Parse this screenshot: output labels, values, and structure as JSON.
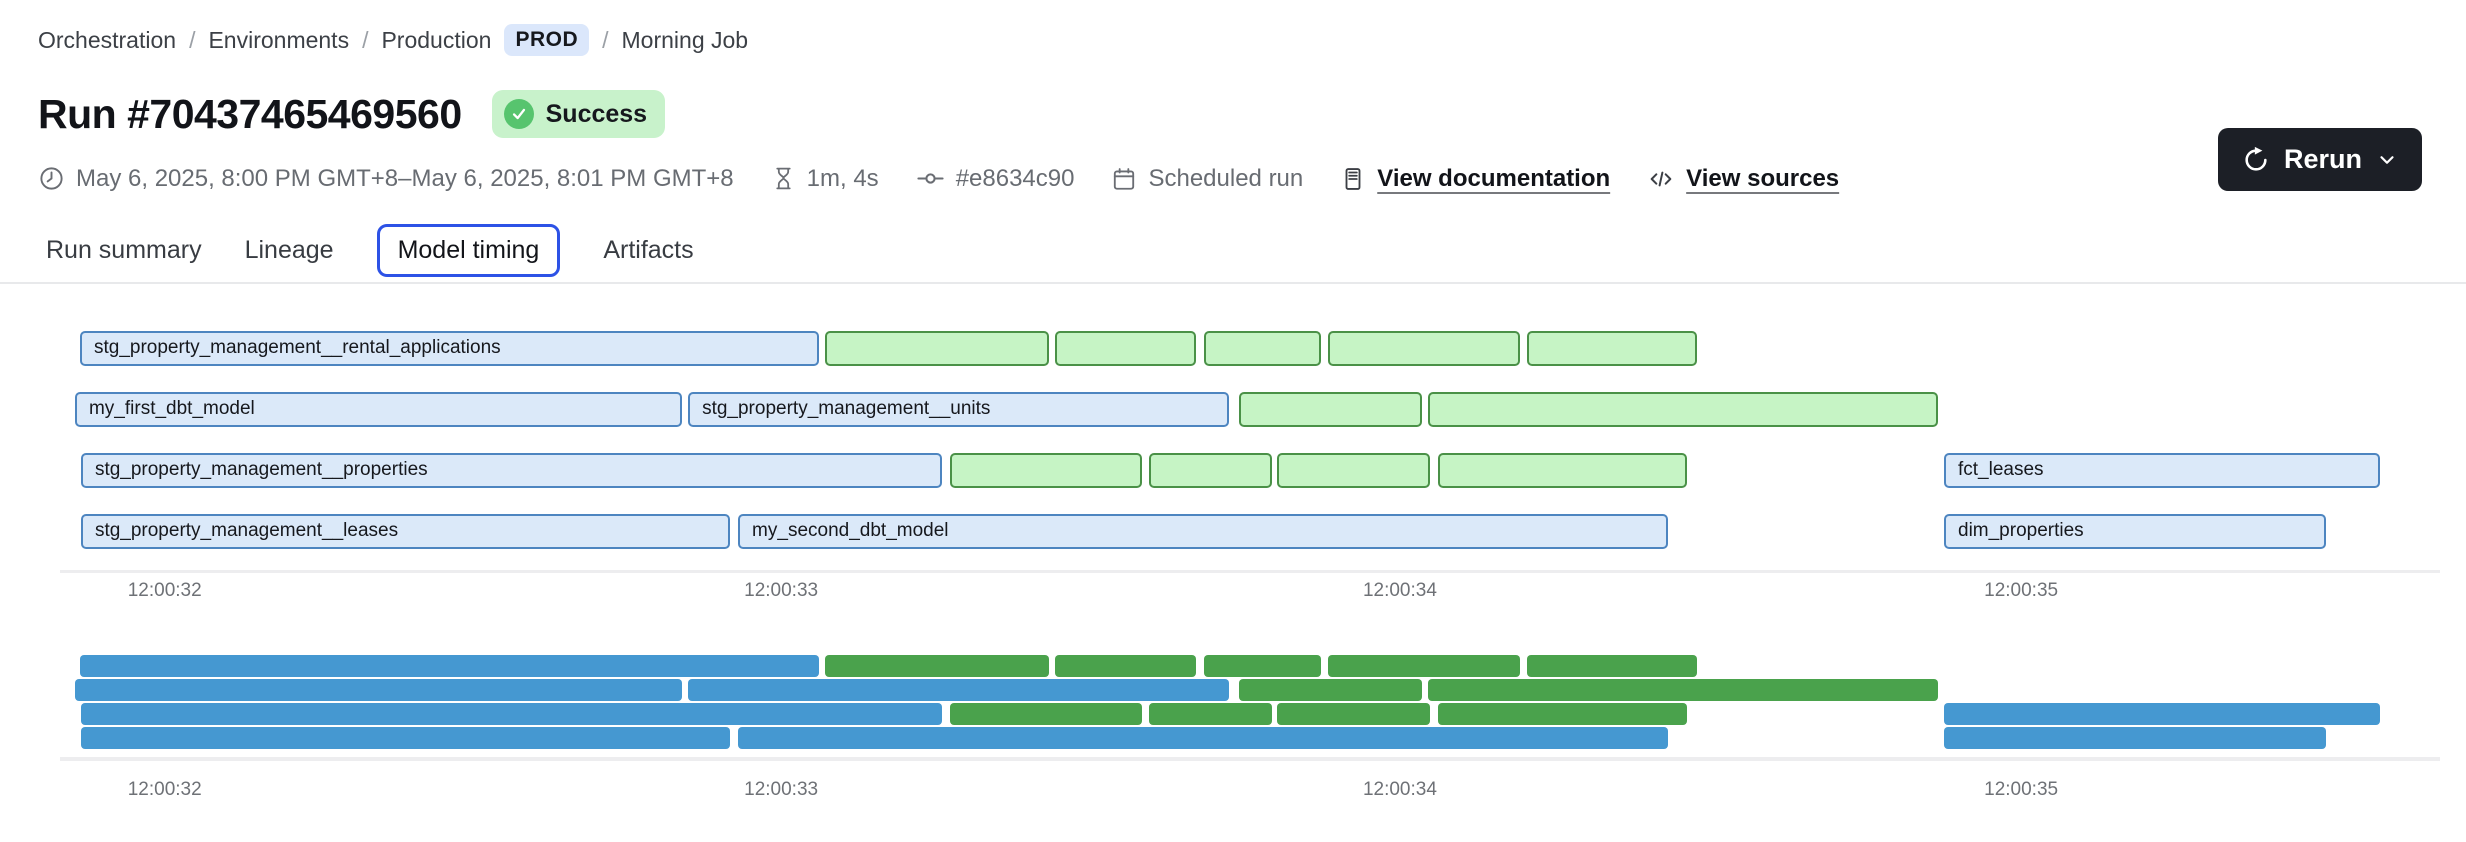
{
  "breadcrumb": {
    "separator": "/",
    "items": [
      "Orchestration",
      "Environments",
      "Production"
    ],
    "env_badge": "PROD",
    "job": "Morning Job"
  },
  "header": {
    "title": "Run #70437465469560",
    "status": "Success",
    "rerun_label": "Rerun"
  },
  "meta": {
    "items": [
      {
        "icon": "clock-icon",
        "text": "May 6, 2025, 8:00 PM GMT+8–May 6, 2025, 8:01 PM GMT+8"
      },
      {
        "icon": "hourglass-icon",
        "text": "1m, 4s"
      },
      {
        "icon": "commit-icon",
        "text": "#e8634c90"
      },
      {
        "icon": "calendar-icon",
        "text": "Scheduled run"
      },
      {
        "icon": "document-icon",
        "text": "View documentation",
        "link": true
      },
      {
        "icon": "code-icon",
        "text": "View sources",
        "link": true
      }
    ]
  },
  "tabs": [
    {
      "label": "Run summary",
      "active": false
    },
    {
      "label": "Lineage",
      "active": false
    },
    {
      "label": "Model timing",
      "active": true
    },
    {
      "label": "Artifacts",
      "active": false
    }
  ],
  "colors": {
    "accent_blue": "#2d52e6",
    "prod_badge_bg": "#dbe7fb",
    "badge_green_bg": "#c8f2cb",
    "badge_green_dot": "#57c46e",
    "rerun_bg": "#1c1f26",
    "bar_blue_fill": "#dbe9f9",
    "bar_blue_border": "#4d85c0",
    "bar_green_fill": "#c6f4c5",
    "bar_green_border": "#4a9147",
    "mini_blue": "#4598d1",
    "mini_green": "#4aa24c"
  },
  "chart_data": {
    "type": "gantt",
    "title": "Model timing",
    "x_axis": {
      "ticks": [
        "12:00:32",
        "12:00:33",
        "12:00:34",
        "12:00:35"
      ],
      "tick_positions_pct": [
        4.4,
        30.3,
        56.3,
        82.4
      ]
    },
    "legend": "none",
    "grid": "off",
    "rows": [
      [
        {
          "label": "stg_property_management__rental_applications",
          "kind": "blue",
          "left_pct": 0.84,
          "width_pct": 31.05,
          "est_start": "12:00:31.9",
          "est_end": "12:00:33.1"
        },
        {
          "label": "",
          "kind": "green",
          "left_pct": 32.14,
          "width_pct": 9.41,
          "est_start": "12:00:33.1",
          "est_end": "12:00:33.4"
        },
        {
          "label": "",
          "kind": "green",
          "left_pct": 41.81,
          "width_pct": 5.92,
          "est_start": "12:00:33.4",
          "est_end": "12:00:33.7"
        },
        {
          "label": "",
          "kind": "green",
          "left_pct": 48.07,
          "width_pct": 4.92,
          "est_start": "12:00:33.7",
          "est_end": "12:00:33.9"
        },
        {
          "label": "",
          "kind": "green",
          "left_pct": 53.28,
          "width_pct": 8.07,
          "est_start": "12:00:33.9",
          "est_end": "12:00:34.2"
        },
        {
          "label": "",
          "kind": "green",
          "left_pct": 61.64,
          "width_pct": 7.14,
          "est_start": "12:00:34.2",
          "est_end": "12:00:34.5"
        }
      ],
      [
        {
          "label": "my_first_dbt_model",
          "kind": "blue",
          "left_pct": 0.63,
          "width_pct": 25.5,
          "est_start": "12:00:31.9",
          "est_end": "12:00:32.8"
        },
        {
          "label": "stg_property_management__units",
          "kind": "blue",
          "left_pct": 26.39,
          "width_pct": 22.73,
          "est_start": "12:00:32.9",
          "est_end": "12:00:33.7"
        },
        {
          "label": "",
          "kind": "green",
          "left_pct": 49.54,
          "width_pct": 7.69,
          "est_start": "12:00:33.7",
          "est_end": "12:00:34.0"
        },
        {
          "label": "",
          "kind": "green",
          "left_pct": 57.48,
          "width_pct": 21.43,
          "est_start": "12:00:34.1",
          "est_end": "12:00:34.9"
        }
      ],
      [
        {
          "label": "stg_property_management__properties",
          "kind": "blue",
          "left_pct": 0.88,
          "width_pct": 36.18,
          "est_start": "12:00:31.9",
          "est_end": "12:00:33.3"
        },
        {
          "label": "",
          "kind": "green",
          "left_pct": 37.39,
          "width_pct": 8.07,
          "est_start": "12:00:33.3",
          "est_end": "12:00:33.6"
        },
        {
          "label": "",
          "kind": "green",
          "left_pct": 45.76,
          "width_pct": 5.17,
          "est_start": "12:00:33.6",
          "est_end": "12:00:33.8"
        },
        {
          "label": "",
          "kind": "green",
          "left_pct": 51.13,
          "width_pct": 6.43,
          "est_start": "12:00:33.8",
          "est_end": "12:00:34.1"
        },
        {
          "label": "",
          "kind": "green",
          "left_pct": 57.9,
          "width_pct": 10.46,
          "est_start": "12:00:34.1",
          "est_end": "12:00:34.5"
        },
        {
          "label": "fct_leases",
          "kind": "blue",
          "left_pct": 79.16,
          "width_pct": 18.32,
          "est_start": "12:00:34.9",
          "est_end": "12:00:35.6"
        }
      ],
      [
        {
          "label": "stg_property_management__leases",
          "kind": "blue",
          "left_pct": 0.88,
          "width_pct": 27.27,
          "est_start": "12:00:31.9",
          "est_end": "12:00:32.9"
        },
        {
          "label": "my_second_dbt_model",
          "kind": "blue",
          "left_pct": 28.49,
          "width_pct": 39.08,
          "est_start": "12:00:32.9",
          "est_end": "12:00:34.4"
        },
        {
          "label": "dim_properties",
          "kind": "blue",
          "left_pct": 79.16,
          "width_pct": 16.05,
          "est_start": "12:00:34.9",
          "est_end": "12:00:35.5"
        }
      ]
    ],
    "minimap": {
      "mirrors_rows": true,
      "ticks": [
        "12:00:32",
        "12:00:33",
        "12:00:34",
        "12:00:35"
      ]
    }
  }
}
